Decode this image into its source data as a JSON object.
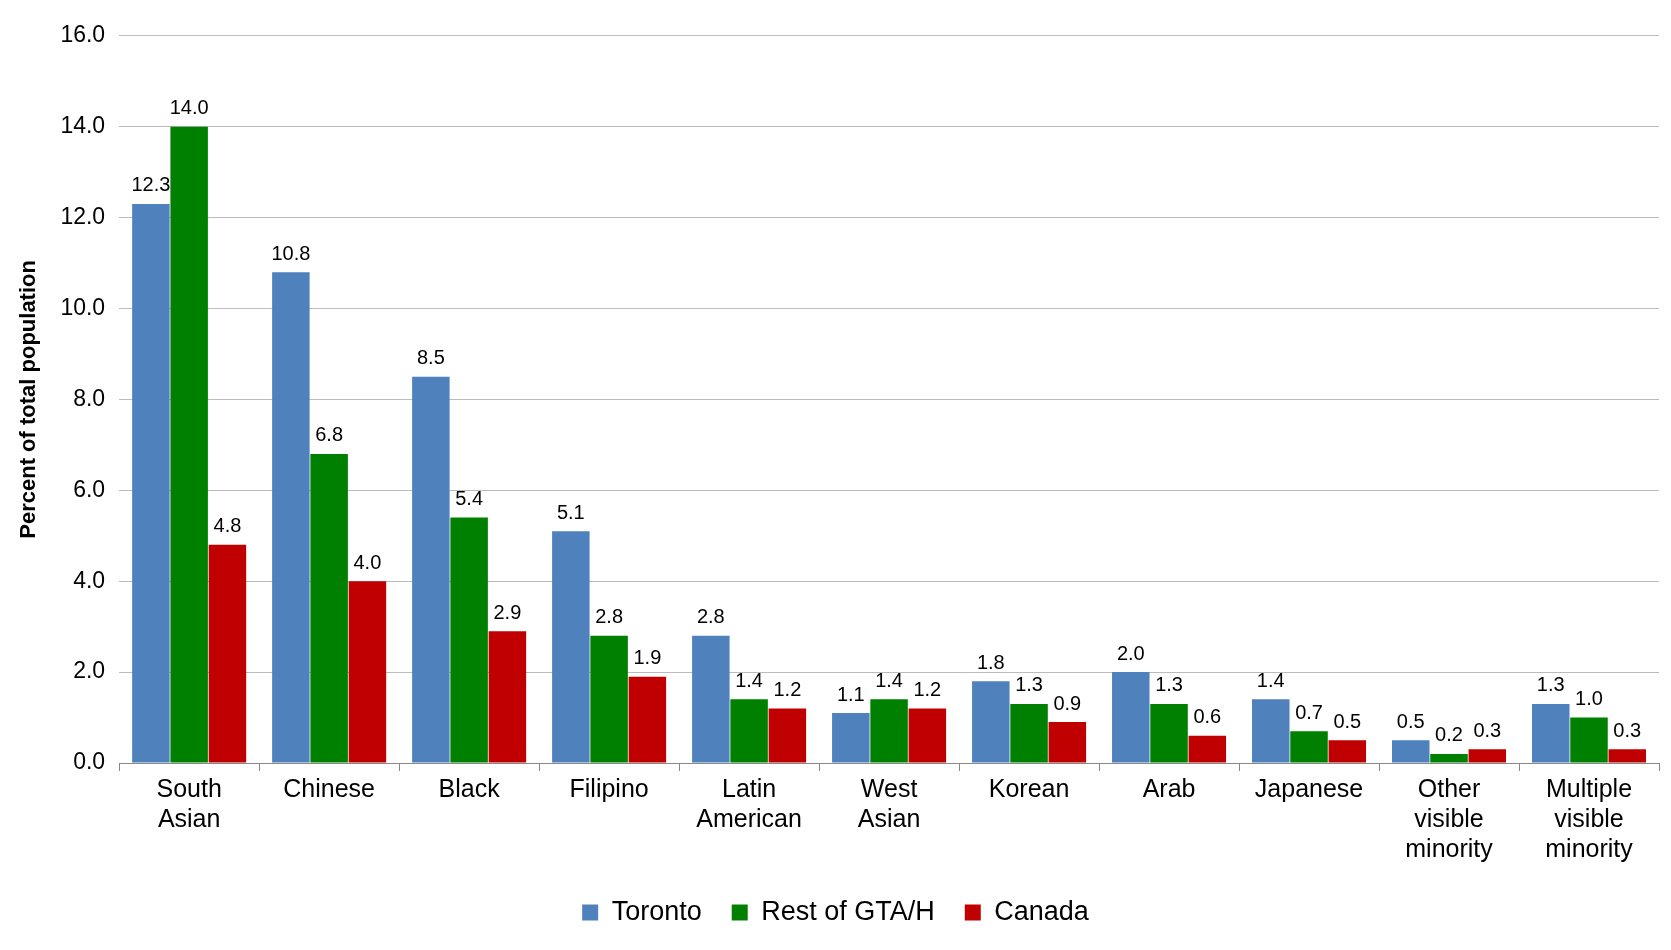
{
  "chart_data": {
    "type": "bar",
    "ylabel": "Percent of total population",
    "categories": [
      "South Asian",
      "Chinese",
      "Black",
      "Filipino",
      "Latin American",
      "West Asian",
      "Korean",
      "Arab",
      "Japanese",
      "Other visible minority",
      "Multiple visible minority"
    ],
    "series": [
      {
        "name": "Toronto",
        "color": "#4f81bd",
        "values": [
          12.3,
          10.8,
          8.5,
          5.1,
          2.8,
          1.1,
          1.8,
          2.0,
          1.4,
          0.5,
          1.3
        ],
        "value_labels": [
          "12.3",
          "10.8",
          "8.5",
          "5.1",
          "2.8",
          "1.1",
          "1.8",
          "2.0",
          "1.4",
          "0.5",
          "1.3"
        ]
      },
      {
        "name": "Rest of GTA/H",
        "color": "#008000",
        "values": [
          14.0,
          6.8,
          5.4,
          2.8,
          1.4,
          1.4,
          1.3,
          1.3,
          0.7,
          0.2,
          1.0
        ],
        "value_labels": [
          "14.0",
          "6.8",
          "5.4",
          "2.8",
          "1.4",
          "1.4",
          "1.3",
          "1.3",
          "0.7",
          "0.2",
          "1.0"
        ]
      },
      {
        "name": "Canada",
        "color": "#c00000",
        "values": [
          4.8,
          4.0,
          2.9,
          1.9,
          1.2,
          1.2,
          0.9,
          0.6,
          0.5,
          0.3,
          0.3
        ],
        "value_labels": [
          "4.8",
          "4.0",
          "2.9",
          "1.9",
          "1.2",
          "1.2",
          "0.9",
          "0.6",
          "0.5",
          "0.3",
          "0.3"
        ]
      }
    ],
    "ylim": [
      0,
      16
    ],
    "yticks": [
      {
        "value": 0,
        "label": "0.0"
      },
      {
        "value": 2,
        "label": "2.0"
      },
      {
        "value": 4,
        "label": "4.0"
      },
      {
        "value": 6,
        "label": "6.0"
      },
      {
        "value": 8,
        "label": "8.0"
      },
      {
        "value": 10,
        "label": "10.0"
      },
      {
        "value": 12,
        "label": "12.0"
      },
      {
        "value": 14,
        "label": "14.0"
      },
      {
        "value": 16,
        "label": "16.0"
      }
    ],
    "grid": "y",
    "legend": "bottom"
  }
}
